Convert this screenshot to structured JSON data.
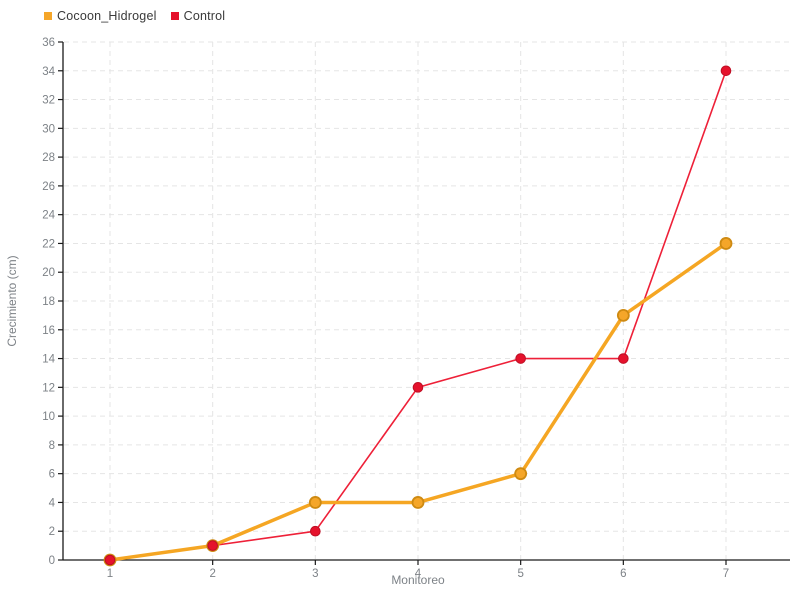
{
  "chart_data": {
    "type": "line",
    "x": [
      1,
      2,
      3,
      4,
      5,
      6,
      7
    ],
    "series": [
      {
        "name": "Cocoon_Hidrogel",
        "values": [
          0,
          1,
          4,
          4,
          6,
          17,
          22
        ],
        "color": "#F5A623",
        "marker_fill": "#F5A629",
        "marker_stroke": "#CE8A12",
        "line_width": 3.5,
        "marker_radius": 5.5,
        "marker_stroke_width": 1.8
      },
      {
        "name": "Control",
        "values": [
          0,
          1,
          2,
          12,
          14,
          14,
          34
        ],
        "color": "#EE2038",
        "marker_fill": "#E5122C",
        "marker_stroke": "#BE0E24",
        "line_width": 1.6,
        "marker_radius": 4.8,
        "marker_stroke_width": 1
      }
    ],
    "title": "",
    "xlabel": "Monitoreo",
    "ylabel": "Crecimiento (cm)",
    "xlim": [
      1,
      7
    ],
    "ylim": [
      0,
      36
    ],
    "y_step": 2,
    "grid": true,
    "grid_color": "#E5E5E5",
    "axis_color": "#1a1a1a",
    "tick_label_color": "#7d8287",
    "axis_label_color": "#7d8287",
    "legend_position": "top-left"
  }
}
